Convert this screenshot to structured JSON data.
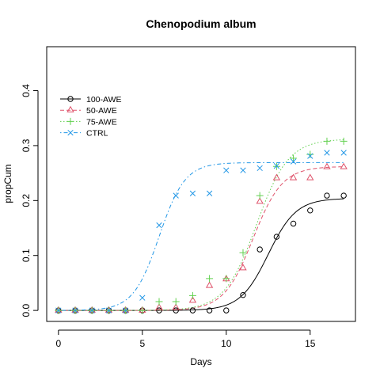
{
  "chart_data": {
    "type": "line",
    "title": "Chenopodium album",
    "xlabel": "Days",
    "ylabel": "propCum",
    "xlim": [
      -0.7,
      17.7
    ],
    "ylim": [
      -0.02,
      0.48
    ],
    "x_ticks": [
      0,
      5,
      10,
      15
    ],
    "y_ticks": [
      0.0,
      0.1,
      0.2,
      0.3,
      0.4
    ],
    "y_tick_labels": [
      "0.0",
      "0.1",
      "0.2",
      "0.3",
      "0.4"
    ],
    "grid": false,
    "legend_position": "top-left",
    "series": [
      {
        "name": "100-AWE",
        "color": "#000000",
        "marker": "circle",
        "dash": "solid",
        "x": [
          0,
          1,
          2,
          3,
          4,
          5,
          6,
          7,
          8,
          9,
          10,
          11,
          12,
          13,
          14,
          15,
          16,
          17
        ],
        "y": [
          0,
          0,
          0,
          0,
          0,
          0,
          0,
          0,
          0,
          0,
          0,
          0.028,
          0.111,
          0.134,
          0.158,
          0.182,
          0.209,
          0.209
        ],
        "fit": {
          "d": 0.204,
          "b": 1.2,
          "e": 12.5
        }
      },
      {
        "name": "50-AWE",
        "color": "#DF536B",
        "marker": "triangle",
        "dash": "dashed",
        "x": [
          0,
          1,
          2,
          3,
          4,
          5,
          6,
          7,
          8,
          9,
          10,
          11,
          12,
          13,
          14,
          15,
          16,
          17
        ],
        "y": [
          0,
          0,
          0,
          0,
          0,
          0,
          0.005,
          0.005,
          0.018,
          0.045,
          0.057,
          0.077,
          0.198,
          0.241,
          0.241,
          0.241,
          0.261,
          0.261
        ],
        "fit": {
          "d": 0.262,
          "b": 1.15,
          "e": 11.6
        }
      },
      {
        "name": "75-AWE",
        "color": "#61D04F",
        "marker": "plus",
        "dash": "dotted",
        "x": [
          0,
          1,
          2,
          3,
          4,
          5,
          6,
          7,
          8,
          9,
          10,
          11,
          12,
          13,
          14,
          15,
          16,
          17
        ],
        "y": [
          0,
          0,
          0,
          0,
          0,
          0,
          0.016,
          0.016,
          0.027,
          0.058,
          0.058,
          0.105,
          0.209,
          0.262,
          0.277,
          0.284,
          0.308,
          0.308
        ],
        "fit": {
          "d": 0.312,
          "b": 1.05,
          "e": 11.8
        }
      },
      {
        "name": "CTRL",
        "color": "#2297E6",
        "marker": "cross",
        "dash": "dotdash",
        "x": [
          0,
          1,
          2,
          3,
          4,
          5,
          6,
          7,
          8,
          9,
          10,
          11,
          12,
          13,
          14,
          15,
          16,
          17
        ],
        "y": [
          0,
          0,
          0,
          0,
          0,
          0.023,
          0.155,
          0.209,
          0.213,
          0.213,
          0.255,
          0.255,
          0.259,
          0.263,
          0.271,
          0.281,
          0.287,
          0.287
        ],
        "fit": {
          "d": 0.269,
          "b": 1.3,
          "e": 6.0
        }
      }
    ]
  }
}
